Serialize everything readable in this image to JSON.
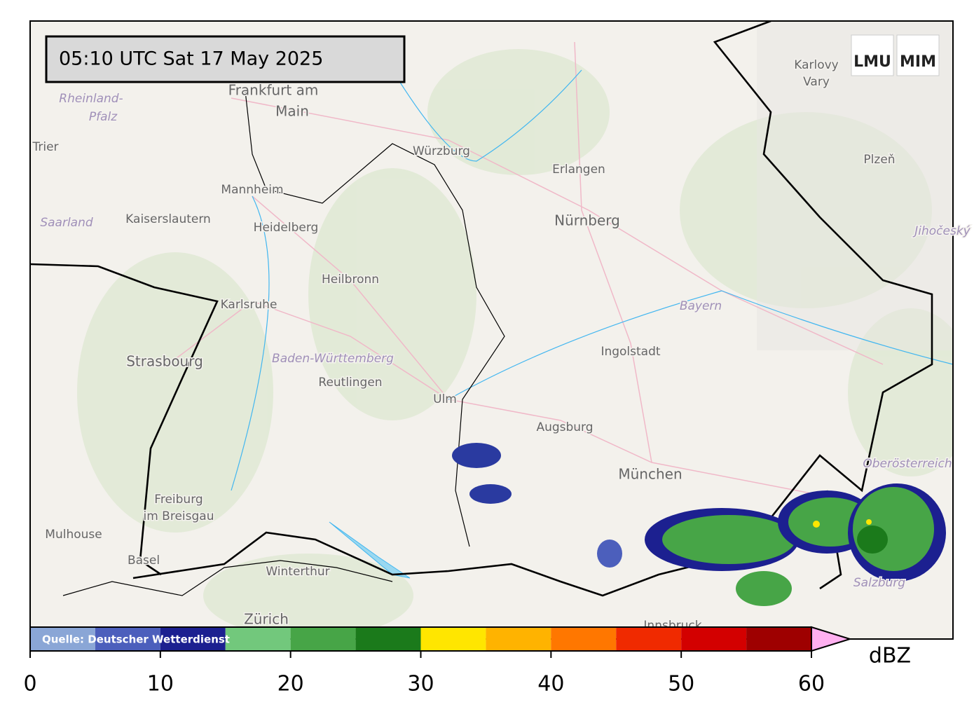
{
  "map": {
    "timestamp": "05:10 UTC  Sat 17 May 2025",
    "logos": [
      "LMU",
      "MIM"
    ],
    "places": [
      {
        "label": "Rheinland-",
        "kind": "region"
      },
      {
        "label": "Pfalz",
        "kind": "region"
      },
      {
        "label": "Frankfurt am",
        "kind": "big"
      },
      {
        "label": "Main",
        "kind": "big"
      },
      {
        "label": "Trier",
        "kind": "place"
      },
      {
        "label": "Saarland",
        "kind": "region"
      },
      {
        "label": "Kaiserslautern",
        "kind": "place"
      },
      {
        "label": "Mannheim",
        "kind": "place"
      },
      {
        "label": "Heidelberg",
        "kind": "place"
      },
      {
        "label": "Heilbronn",
        "kind": "place"
      },
      {
        "label": "Karlsruhe",
        "kind": "place"
      },
      {
        "label": "Strasbourg",
        "kind": "big"
      },
      {
        "label": "Baden-Württemberg",
        "kind": "region"
      },
      {
        "label": "Reutlingen",
        "kind": "place"
      },
      {
        "label": "Ulm",
        "kind": "place"
      },
      {
        "label": "Freiburg",
        "kind": "place"
      },
      {
        "label": "im Breisgau",
        "kind": "place"
      },
      {
        "label": "Mulhouse",
        "kind": "place"
      },
      {
        "label": "Basel",
        "kind": "place"
      },
      {
        "label": "Winterthur",
        "kind": "place"
      },
      {
        "label": "Zürich",
        "kind": "big"
      },
      {
        "label": "Würzburg",
        "kind": "place"
      },
      {
        "label": "Erlangen",
        "kind": "place"
      },
      {
        "label": "Nürnberg",
        "kind": "big"
      },
      {
        "label": "Bayern",
        "kind": "region"
      },
      {
        "label": "Ingolstadt",
        "kind": "place"
      },
      {
        "label": "Augsburg",
        "kind": "place"
      },
      {
        "label": "München",
        "kind": "big"
      },
      {
        "label": "Oberösterreich",
        "kind": "region"
      },
      {
        "label": "Salzburg",
        "kind": "region"
      },
      {
        "label": "Innsbruck",
        "kind": "place"
      },
      {
        "label": "Karlovy",
        "kind": "place"
      },
      {
        "label": "Vary",
        "kind": "place"
      },
      {
        "label": "Plzeň",
        "kind": "place"
      },
      {
        "label": "Jihočeský",
        "kind": "region"
      }
    ],
    "colorbar": {
      "bounds": [
        0,
        5,
        10,
        15,
        20,
        25,
        30,
        35,
        40,
        45,
        50,
        55,
        60
      ],
      "colors": [
        "#8aa6d6",
        "#4c5fbc",
        "#1c2090",
        "#72c87c",
        "#47a547",
        "#1b7a1b",
        "#ffe600",
        "#ffb300",
        "#ff7700",
        "#f02a00",
        "#d30000",
        "#9e0000"
      ],
      "over_color": "#ffb0f0",
      "ticks": [
        0,
        10,
        20,
        30,
        40,
        50,
        60
      ],
      "unit": "dBZ",
      "source": "Quelle: Deutscher Wetterdienst"
    }
  }
}
